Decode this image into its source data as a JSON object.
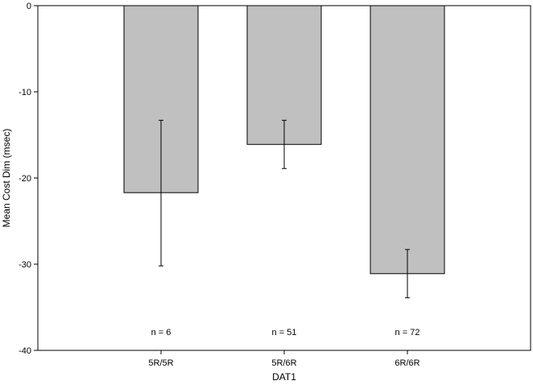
{
  "chart_data": {
    "type": "bar",
    "categories": [
      "5R/5R",
      "5R/6R",
      "6R/6R"
    ],
    "values": [
      -21.7,
      -16.1,
      -31.1
    ],
    "error_bars": [
      {
        "low": -30.2,
        "high": -13.3
      },
      {
        "low": -18.9,
        "high": -13.3
      },
      {
        "low": -33.9,
        "high": -28.3
      }
    ],
    "n_labels": [
      "n = 6",
      "n = 51",
      "n = 72"
    ],
    "xlabel": "DAT1",
    "ylabel": "Mean Cost Dim (msec)",
    "ylim": [
      -40,
      0
    ],
    "yticks": [
      0,
      -10,
      -20,
      -30,
      -40
    ],
    "grid": false,
    "bar_color": "#c0c0c0"
  }
}
